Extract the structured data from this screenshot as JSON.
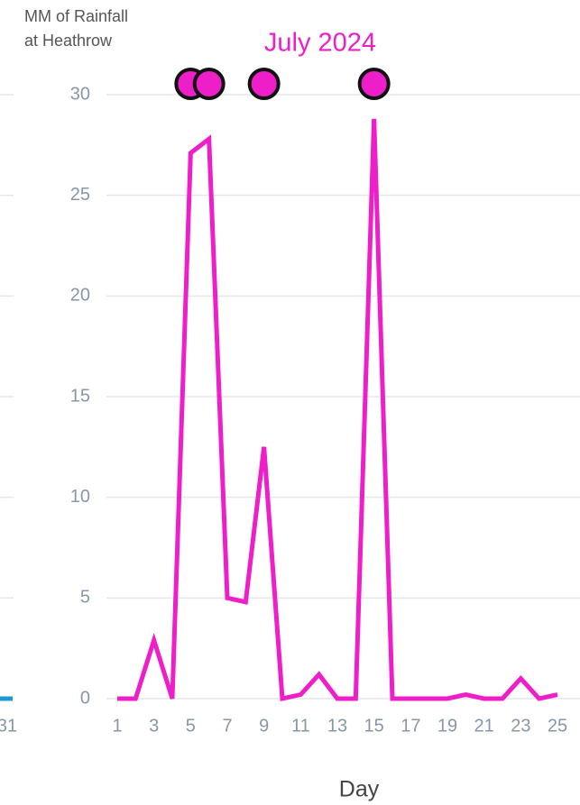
{
  "chart_data": {
    "type": "line",
    "title": "July 2024",
    "y_label": [
      "MM of Rainfall",
      "at Heathrow"
    ],
    "x_label": "Day",
    "x": [
      1,
      2,
      3,
      4,
      5,
      6,
      7,
      8,
      9,
      10,
      11,
      12,
      13,
      14,
      15,
      16,
      17,
      18,
      19,
      20,
      21,
      22,
      23,
      24,
      25
    ],
    "series": [
      {
        "name": "Rainfall",
        "color": "#ee1ec8",
        "values": [
          0,
          0,
          2.9,
          0,
          27.1,
          27.8,
          5.0,
          4.8,
          12.5,
          0,
          0.2,
          1.2,
          0,
          0,
          28.8,
          0,
          0,
          0,
          0,
          0.2,
          0,
          0,
          1.0,
          0,
          0.2
        ]
      }
    ],
    "highlight_days": [
      5,
      6,
      9,
      15
    ],
    "xlim": [
      1,
      25
    ],
    "xticks": [
      1,
      3,
      5,
      7,
      9,
      11,
      13,
      15,
      17,
      19,
      21,
      23,
      25
    ],
    "ylim": [
      0,
      30
    ],
    "yticks": [
      0,
      5,
      10,
      15,
      20,
      25,
      30
    ],
    "grid": true,
    "previous_panel": {
      "last_tick": 31,
      "last_value": 0,
      "color": "#1a9bd7"
    }
  }
}
